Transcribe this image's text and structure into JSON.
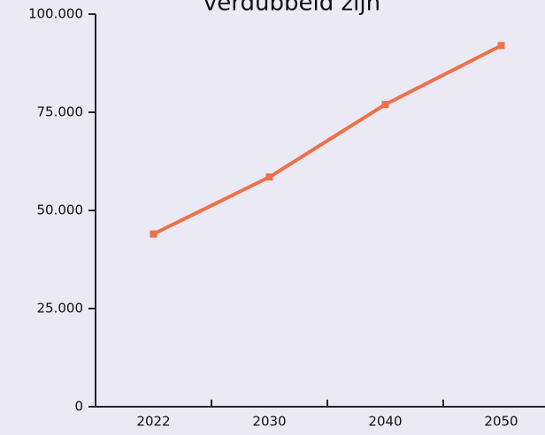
{
  "chart_data": {
    "type": "line",
    "title": "verdubbeld zijn",
    "categories": [
      "2022",
      "2030",
      "2040",
      "2050"
    ],
    "series": [
      {
        "color": "#ee7048",
        "values": [
          44000,
          58500,
          77000,
          92000
        ]
      }
    ],
    "ylim": [
      0,
      100000
    ],
    "yticks": [
      0,
      {
        "value": 25000,
        "label": "25.000"
      },
      {
        "value": 50000,
        "label": "50.000"
      },
      {
        "value": 75000,
        "label": "75.000"
      },
      {
        "value": 100000,
        "label": "100.000"
      }
    ],
    "grid": false
  }
}
